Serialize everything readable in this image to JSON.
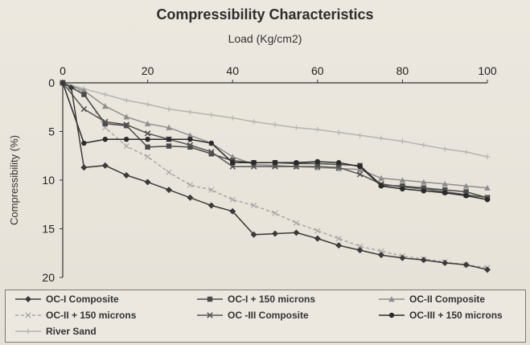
{
  "chart_data": {
    "type": "line",
    "title": "Compressibility Characteristics",
    "xlabel": "Load (Kg/cm2)",
    "ylabel": "Compressibility (%)",
    "xlim": [
      0,
      100
    ],
    "ylim": [
      0,
      20
    ],
    "y_inverted": true,
    "x_axis_position": "top",
    "x_ticks": [
      0,
      20,
      40,
      60,
      80,
      100
    ],
    "y_ticks": [
      0,
      5,
      10,
      15,
      20
    ],
    "grid": false,
    "legend_position": "bottom",
    "series": [
      {
        "name": "OC-I Composite",
        "color": "#3a3a3a",
        "marker": "diamond",
        "dash": "",
        "points": [
          [
            0,
            0
          ],
          [
            2,
            0.5
          ],
          [
            5,
            8.7
          ],
          [
            10,
            8.5
          ],
          [
            15,
            9.5
          ],
          [
            20,
            10.2
          ],
          [
            25,
            11.0
          ],
          [
            30,
            11.8
          ],
          [
            35,
            12.6
          ],
          [
            40,
            13.2
          ],
          [
            45,
            15.6
          ],
          [
            50,
            15.5
          ],
          [
            55,
            15.4
          ],
          [
            60,
            16.0
          ],
          [
            65,
            16.7
          ],
          [
            70,
            17.2
          ],
          [
            75,
            17.7
          ],
          [
            80,
            18.0
          ],
          [
            85,
            18.2
          ],
          [
            90,
            18.5
          ],
          [
            95,
            18.7
          ],
          [
            100,
            19.2
          ]
        ]
      },
      {
        "name": "OC-I + 150 microns",
        "color": "#4a4a4a",
        "marker": "square",
        "dash": "",
        "points": [
          [
            0,
            0
          ],
          [
            5,
            1.2
          ],
          [
            10,
            4.2
          ],
          [
            15,
            4.4
          ],
          [
            20,
            6.6
          ],
          [
            25,
            6.5
          ],
          [
            30,
            6.6
          ],
          [
            35,
            7.3
          ],
          [
            40,
            8.0
          ],
          [
            45,
            8.2
          ],
          [
            50,
            8.2
          ],
          [
            55,
            8.3
          ],
          [
            60,
            8.3
          ],
          [
            65,
            8.4
          ],
          [
            70,
            8.5
          ],
          [
            75,
            10.5
          ],
          [
            80,
            10.6
          ],
          [
            85,
            10.8
          ],
          [
            90,
            11.0
          ],
          [
            95,
            11.2
          ],
          [
            100,
            11.8
          ]
        ]
      },
      {
        "name": "OC-II Composite",
        "color": "#8e8e8e",
        "marker": "triangle",
        "dash": "",
        "points": [
          [
            0,
            0
          ],
          [
            5,
            0.8
          ],
          [
            10,
            2.4
          ],
          [
            15,
            3.5
          ],
          [
            20,
            4.2
          ],
          [
            25,
            4.6
          ],
          [
            30,
            5.4
          ],
          [
            35,
            6.2
          ],
          [
            40,
            7.6
          ],
          [
            45,
            8.4
          ],
          [
            50,
            8.5
          ],
          [
            55,
            8.6
          ],
          [
            60,
            8.7
          ],
          [
            65,
            8.8
          ],
          [
            70,
            8.9
          ],
          [
            75,
            9.8
          ],
          [
            80,
            10.0
          ],
          [
            85,
            10.2
          ],
          [
            90,
            10.4
          ],
          [
            95,
            10.6
          ],
          [
            100,
            10.8
          ]
        ]
      },
      {
        "name": "OC-II + 150 microns",
        "color": "#a5a5a5",
        "marker": "cross",
        "dash": "4,3",
        "points": [
          [
            0,
            0
          ],
          [
            5,
            1.0
          ],
          [
            10,
            4.6
          ],
          [
            15,
            6.5
          ],
          [
            20,
            7.6
          ],
          [
            25,
            9.2
          ],
          [
            30,
            10.5
          ],
          [
            35,
            11.0
          ],
          [
            40,
            12.0
          ],
          [
            45,
            12.6
          ],
          [
            50,
            13.4
          ],
          [
            55,
            14.4
          ],
          [
            60,
            15.2
          ],
          [
            65,
            16.0
          ],
          [
            70,
            16.8
          ],
          [
            75,
            17.3
          ],
          [
            80,
            17.8
          ],
          [
            85,
            18.1
          ],
          [
            90,
            18.4
          ],
          [
            95,
            18.7
          ],
          [
            100,
            19.0
          ]
        ]
      },
      {
        "name": "OC -III Composite",
        "color": "#555555",
        "marker": "x",
        "dash": "",
        "points": [
          [
            0,
            0
          ],
          [
            5,
            2.7
          ],
          [
            10,
            4.0
          ],
          [
            15,
            4.3
          ],
          [
            20,
            5.2
          ],
          [
            25,
            5.8
          ],
          [
            30,
            6.4
          ],
          [
            35,
            7.1
          ],
          [
            40,
            8.6
          ],
          [
            45,
            8.6
          ],
          [
            50,
            8.6
          ],
          [
            55,
            8.6
          ],
          [
            60,
            8.6
          ],
          [
            65,
            8.7
          ],
          [
            70,
            9.4
          ],
          [
            75,
            10.4
          ],
          [
            80,
            10.7
          ],
          [
            85,
            10.9
          ],
          [
            90,
            11.2
          ],
          [
            95,
            11.5
          ],
          [
            100,
            11.8
          ]
        ]
      },
      {
        "name": "OC-III + 150 microns",
        "color": "#2a2a2a",
        "marker": "circle",
        "dash": "",
        "points": [
          [
            0,
            0
          ],
          [
            5,
            6.2
          ],
          [
            10,
            5.8
          ],
          [
            15,
            5.8
          ],
          [
            20,
            5.8
          ],
          [
            25,
            5.8
          ],
          [
            30,
            5.8
          ],
          [
            35,
            6.2
          ],
          [
            40,
            8.2
          ],
          [
            45,
            8.2
          ],
          [
            50,
            8.2
          ],
          [
            55,
            8.2
          ],
          [
            60,
            8.1
          ],
          [
            65,
            8.2
          ],
          [
            70,
            8.6
          ],
          [
            75,
            10.6
          ],
          [
            80,
            10.9
          ],
          [
            85,
            11.1
          ],
          [
            90,
            11.3
          ],
          [
            95,
            11.6
          ],
          [
            100,
            12.0
          ]
        ]
      },
      {
        "name": "River Sand",
        "color": "#b4b4b4",
        "marker": "plus",
        "dash": "",
        "points": [
          [
            0,
            0
          ],
          [
            5,
            0.6
          ],
          [
            10,
            1.2
          ],
          [
            15,
            1.8
          ],
          [
            20,
            2.2
          ],
          [
            25,
            2.7
          ],
          [
            30,
            3.0
          ],
          [
            35,
            3.3
          ],
          [
            40,
            3.6
          ],
          [
            45,
            4.0
          ],
          [
            50,
            4.3
          ],
          [
            55,
            4.6
          ],
          [
            60,
            4.8
          ],
          [
            65,
            5.1
          ],
          [
            70,
            5.4
          ],
          [
            75,
            5.7
          ],
          [
            80,
            6.0
          ],
          [
            85,
            6.4
          ],
          [
            90,
            6.8
          ],
          [
            95,
            7.1
          ],
          [
            100,
            7.6
          ]
        ]
      }
    ]
  }
}
